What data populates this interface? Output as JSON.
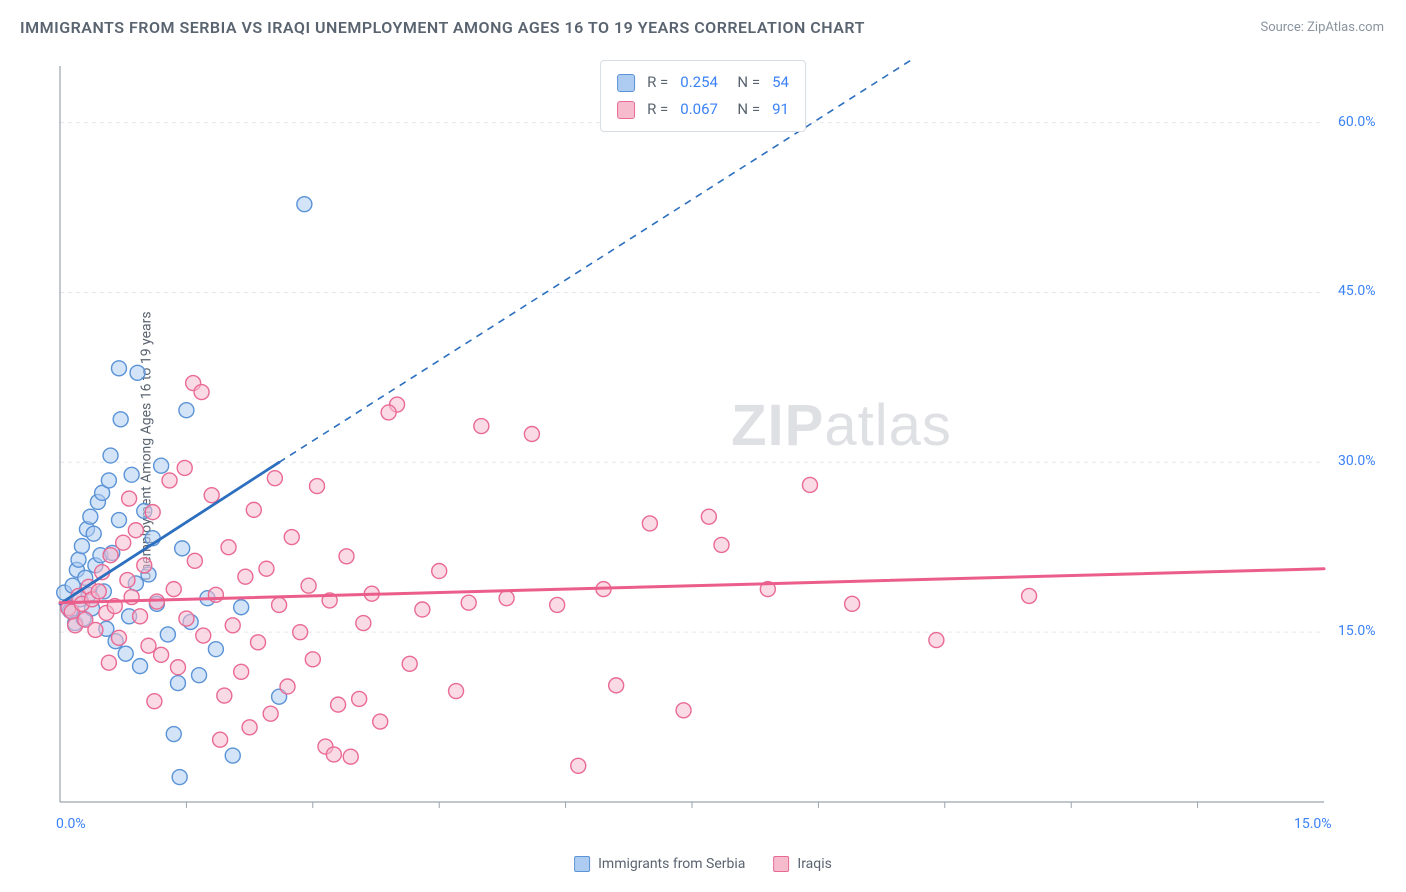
{
  "title": "IMMIGRANTS FROM SERBIA VS IRAQI UNEMPLOYMENT AMONG AGES 16 TO 19 YEARS CORRELATION CHART",
  "source": "Source: ZipAtlas.com",
  "ylabel": "Unemployment Among Ages 16 to 19 years",
  "watermark_bold": "ZIP",
  "watermark_rest": "atlas",
  "chart": {
    "type": "scatter",
    "xlim": [
      0,
      15
    ],
    "ylim": [
      0,
      65
    ],
    "x_ticks": [
      0,
      15
    ],
    "x_tick_labels": [
      "0.0%",
      "15.0%"
    ],
    "y_ticks": [
      15,
      30,
      45,
      60
    ],
    "y_tick_labels": [
      "15.0%",
      "30.0%",
      "45.0%",
      "60.0%"
    ],
    "background_color": "#ffffff",
    "grid_color": "#e4e7eb",
    "axis_color": "#9aa3ae",
    "marker_radius": 7.5,
    "marker_stroke_width": 1.4,
    "series": [
      {
        "name": "Immigrants from Serbia",
        "fill": "#aeccf2",
        "stroke": "#5a93d6",
        "fill_opacity": 0.55,
        "R": "0.254",
        "N": "54",
        "trend": {
          "x1": 0,
          "y1": 17.5,
          "x2": 2.6,
          "y2": 30,
          "dash_to_x": 10.2,
          "dash_to_y": 66,
          "color": "#2c6fbf",
          "width": 2.8
        },
        "points": [
          [
            0.05,
            18.5
          ],
          [
            0.1,
            17.2
          ],
          [
            0.12,
            16.9
          ],
          [
            0.15,
            19.1
          ],
          [
            0.18,
            15.8
          ],
          [
            0.2,
            20.5
          ],
          [
            0.22,
            21.4
          ],
          [
            0.24,
            17.9
          ],
          [
            0.26,
            22.6
          ],
          [
            0.28,
            16.2
          ],
          [
            0.3,
            19.8
          ],
          [
            0.32,
            24.1
          ],
          [
            0.34,
            18.3
          ],
          [
            0.36,
            25.2
          ],
          [
            0.38,
            17.1
          ],
          [
            0.4,
            23.7
          ],
          [
            0.42,
            20.9
          ],
          [
            0.45,
            26.5
          ],
          [
            0.48,
            21.8
          ],
          [
            0.5,
            27.3
          ],
          [
            0.52,
            18.6
          ],
          [
            0.55,
            15.3
          ],
          [
            0.58,
            28.4
          ],
          [
            0.6,
            30.6
          ],
          [
            0.62,
            22.0
          ],
          [
            0.66,
            14.2
          ],
          [
            0.7,
            24.9
          ],
          [
            0.72,
            33.8
          ],
          [
            0.78,
            13.1
          ],
          [
            0.82,
            16.4
          ],
          [
            0.85,
            28.9
          ],
          [
            0.9,
            19.3
          ],
          [
            0.92,
            37.9
          ],
          [
            0.95,
            12.0
          ],
          [
            1.0,
            25.7
          ],
          [
            1.05,
            20.1
          ],
          [
            1.1,
            23.3
          ],
          [
            1.15,
            17.5
          ],
          [
            1.2,
            29.7
          ],
          [
            1.28,
            14.8
          ],
          [
            1.35,
            6.0
          ],
          [
            1.4,
            10.5
          ],
          [
            1.42,
            2.2
          ],
          [
            1.45,
            22.4
          ],
          [
            1.5,
            34.6
          ],
          [
            1.55,
            15.9
          ],
          [
            1.65,
            11.2
          ],
          [
            1.75,
            18.0
          ],
          [
            1.85,
            13.5
          ],
          [
            2.05,
            4.1
          ],
          [
            2.15,
            17.2
          ],
          [
            2.6,
            9.3
          ],
          [
            2.9,
            52.8
          ],
          [
            0.7,
            38.3
          ]
        ]
      },
      {
        "name": "Iraqis",
        "fill": "#f6bccd",
        "stroke": "#e96a95",
        "fill_opacity": 0.55,
        "R": "0.067",
        "N": "91",
        "trend": {
          "x1": 0,
          "y1": 17.6,
          "x2": 15,
          "y2": 20.6,
          "color": "#eb5e8b",
          "width": 3
        },
        "points": [
          [
            0.1,
            17.1
          ],
          [
            0.14,
            16.8
          ],
          [
            0.18,
            15.6
          ],
          [
            0.22,
            18.2
          ],
          [
            0.26,
            17.5
          ],
          [
            0.3,
            16.1
          ],
          [
            0.34,
            19.0
          ],
          [
            0.38,
            17.9
          ],
          [
            0.42,
            15.2
          ],
          [
            0.46,
            18.6
          ],
          [
            0.5,
            20.3
          ],
          [
            0.55,
            16.7
          ],
          [
            0.6,
            21.8
          ],
          [
            0.65,
            17.3
          ],
          [
            0.7,
            14.5
          ],
          [
            0.75,
            22.9
          ],
          [
            0.8,
            19.6
          ],
          [
            0.85,
            18.1
          ],
          [
            0.9,
            24.0
          ],
          [
            0.95,
            16.4
          ],
          [
            1.0,
            20.9
          ],
          [
            1.05,
            13.8
          ],
          [
            1.1,
            25.6
          ],
          [
            1.15,
            17.7
          ],
          [
            1.2,
            13.0
          ],
          [
            1.3,
            28.4
          ],
          [
            1.35,
            18.8
          ],
          [
            1.4,
            11.9
          ],
          [
            1.5,
            16.2
          ],
          [
            1.58,
            37.0
          ],
          [
            1.6,
            21.3
          ],
          [
            1.68,
            36.2
          ],
          [
            1.7,
            14.7
          ],
          [
            1.8,
            27.1
          ],
          [
            1.85,
            18.3
          ],
          [
            1.95,
            9.4
          ],
          [
            2.0,
            22.5
          ],
          [
            2.05,
            15.6
          ],
          [
            2.15,
            11.5
          ],
          [
            2.2,
            19.9
          ],
          [
            2.3,
            25.8
          ],
          [
            2.35,
            14.1
          ],
          [
            2.45,
            20.6
          ],
          [
            2.5,
            7.8
          ],
          [
            2.6,
            17.4
          ],
          [
            2.7,
            10.2
          ],
          [
            2.75,
            23.4
          ],
          [
            2.85,
            15.0
          ],
          [
            2.95,
            19.1
          ],
          [
            3.0,
            12.6
          ],
          [
            3.05,
            27.9
          ],
          [
            3.15,
            4.9
          ],
          [
            3.2,
            17.8
          ],
          [
            3.25,
            4.2
          ],
          [
            3.3,
            8.6
          ],
          [
            3.4,
            21.7
          ],
          [
            3.45,
            4.0
          ],
          [
            3.55,
            9.1
          ],
          [
            3.6,
            15.8
          ],
          [
            3.7,
            18.4
          ],
          [
            3.8,
            7.1
          ],
          [
            4.0,
            35.1
          ],
          [
            4.15,
            12.2
          ],
          [
            4.3,
            17.0
          ],
          [
            4.5,
            20.4
          ],
          [
            4.7,
            9.8
          ],
          [
            4.85,
            17.6
          ],
          [
            5.0,
            33.2
          ],
          [
            5.3,
            18.0
          ],
          [
            5.6,
            32.5
          ],
          [
            5.9,
            17.4
          ],
          [
            6.15,
            3.2
          ],
          [
            6.45,
            18.8
          ],
          [
            6.6,
            10.3
          ],
          [
            7.0,
            24.6
          ],
          [
            7.4,
            8.1
          ],
          [
            7.7,
            25.2
          ],
          [
            7.85,
            22.7
          ],
          [
            8.4,
            18.8
          ],
          [
            8.9,
            28.0
          ],
          [
            9.4,
            17.5
          ],
          [
            10.4,
            14.3
          ],
          [
            11.5,
            18.2
          ],
          [
            1.48,
            29.5
          ],
          [
            2.55,
            28.6
          ],
          [
            3.9,
            34.4
          ],
          [
            0.58,
            12.3
          ],
          [
            1.12,
            8.9
          ],
          [
            1.9,
            5.5
          ],
          [
            2.25,
            6.6
          ],
          [
            0.82,
            26.8
          ]
        ]
      }
    ]
  },
  "legend_items": [
    {
      "label": "Immigrants from Serbia",
      "fill": "#aeccf2",
      "stroke": "#5a93d6"
    },
    {
      "label": "Iraqis",
      "fill": "#f6bccd",
      "stroke": "#e96a95"
    }
  ]
}
